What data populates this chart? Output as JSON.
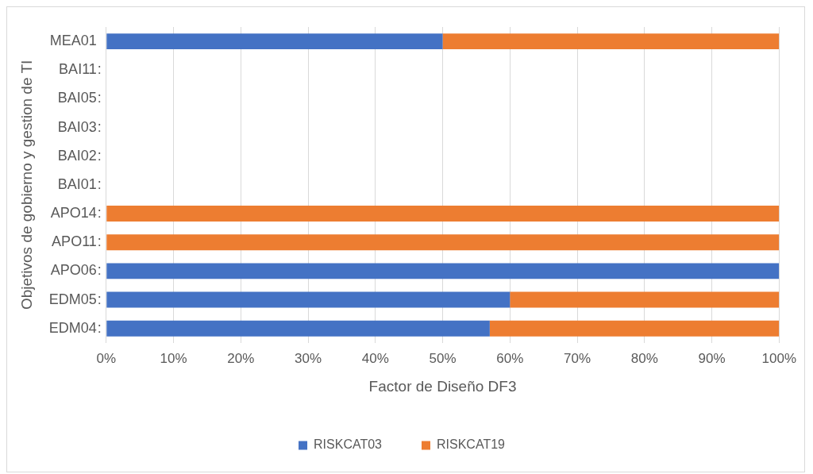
{
  "chart_data": {
    "type": "bar",
    "orientation": "horizontal",
    "stacked": true,
    "xlabel": "Factor de Diseño DF3",
    "ylabel": "Objetivos de gobierno y gestion de TI",
    "categories": [
      "MEA01",
      "BAI11",
      "BAI05",
      "BAI03",
      "BAI02",
      "BAI01",
      "APO14",
      "APO11",
      "APO06",
      "EDM05",
      "EDM04"
    ],
    "series": [
      {
        "name": "RISKCAT03",
        "color": "#4472c4",
        "values": [
          50,
          null,
          null,
          null,
          null,
          null,
          0,
          0,
          100,
          60,
          57
        ]
      },
      {
        "name": "RISKCAT19",
        "color": "#ed7d31",
        "values": [
          50,
          null,
          null,
          null,
          null,
          null,
          100,
          100,
          0,
          40,
          43
        ]
      }
    ],
    "xlim": [
      0,
      100
    ],
    "xticks": [
      {
        "value": 0,
        "label": "0%"
      },
      {
        "value": 10,
        "label": "10%"
      },
      {
        "value": 20,
        "label": "20%"
      },
      {
        "value": 30,
        "label": "30%"
      },
      {
        "value": 40,
        "label": "40%"
      },
      {
        "value": 50,
        "label": "50%"
      },
      {
        "value": 60,
        "label": "60%"
      },
      {
        "value": 70,
        "label": "70%"
      },
      {
        "value": 80,
        "label": "80%"
      },
      {
        "value": 90,
        "label": "90%"
      },
      {
        "value": 100,
        "label": "100%"
      }
    ],
    "annotations": [
      ":",
      ":",
      ":",
      ":",
      ":",
      ":",
      ":",
      ":",
      ":",
      ":"
    ],
    "grid": "x",
    "legend": "bottom"
  }
}
